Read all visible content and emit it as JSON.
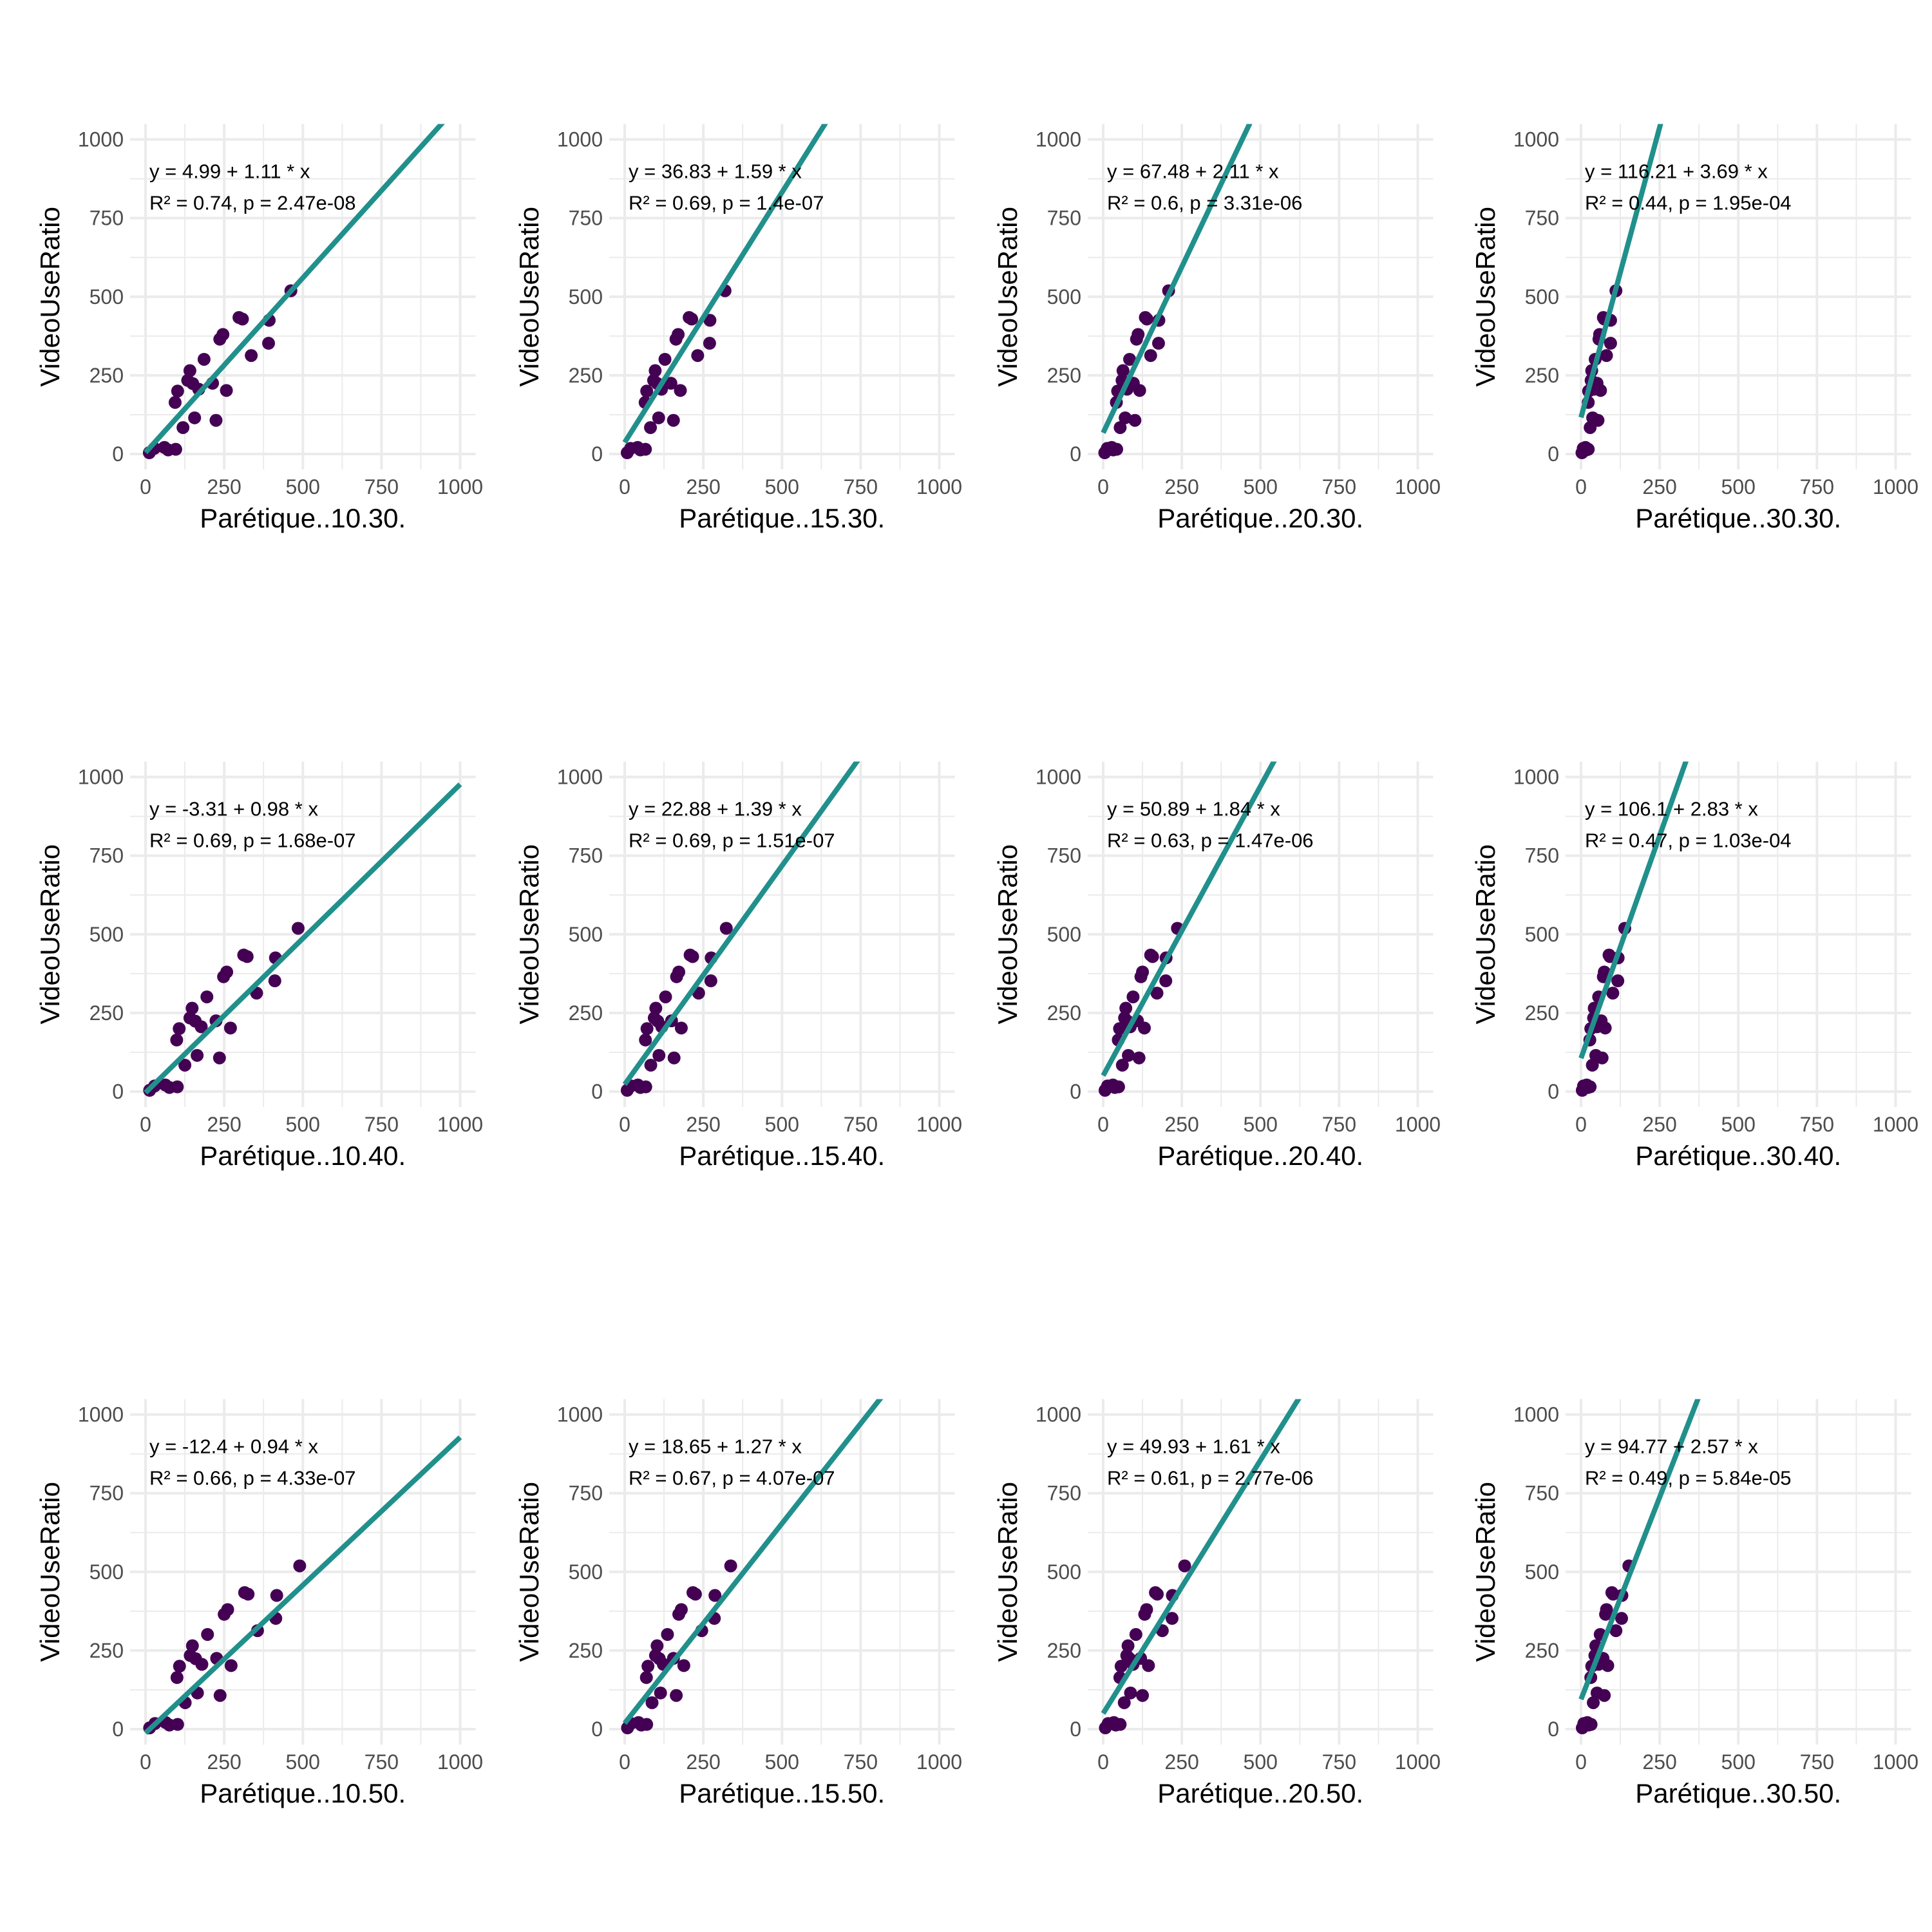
{
  "chart_data": [
    {
      "type": "scatter",
      "title": "",
      "xlabel": "Parétique..10.30.",
      "ylabel": "VideoUseRatio",
      "xlim": [
        0,
        1000
      ],
      "ylim": [
        0,
        1000
      ],
      "xticks": [
        "0",
        "250",
        "500",
        "750",
        "1000"
      ],
      "yticks": [
        "0",
        "250",
        "500",
        "750",
        "1000"
      ],
      "grid": true,
      "annotation": [
        "y = 4.99 + 1.11 * x",
        "R² = 0.74, p = 2.47e-08"
      ],
      "fit": {
        "intercept": 4.99,
        "slope": 1.11
      },
      "x": [
        12,
        28,
        60,
        72,
        96,
        119,
        156,
        224,
        94,
        102,
        141,
        134,
        150,
        169,
        213,
        257,
        186,
        336,
        236,
        246,
        391,
        297,
        308,
        393,
        462
      ],
      "y": [
        4,
        18,
        21,
        13,
        15,
        84,
        115,
        107,
        164,
        200,
        265,
        234,
        224,
        206,
        225,
        202,
        301,
        313,
        365,
        380,
        352,
        434,
        429,
        425,
        519
      ]
    },
    {
      "type": "scatter",
      "title": "",
      "xlabel": "Parétique..15.30.",
      "ylabel": "VideoUseRatio",
      "xlim": [
        0,
        1000
      ],
      "ylim": [
        0,
        1000
      ],
      "xticks": [
        "0",
        "250",
        "500",
        "750",
        "1000"
      ],
      "yticks": [
        "0",
        "250",
        "500",
        "750",
        "1000"
      ],
      "grid": true,
      "annotation": [
        "y = 36.83 + 1.59 * x",
        "R² = 0.69, p = 1.4e-07"
      ],
      "fit": {
        "intercept": 36.83,
        "slope": 1.59
      },
      "x": [
        8,
        19,
        41,
        50,
        66,
        82,
        108,
        155,
        65,
        70,
        97,
        92,
        104,
        117,
        147,
        177,
        128,
        232,
        163,
        170,
        270,
        205,
        213,
        271,
        319
      ],
      "y": [
        4,
        18,
        21,
        13,
        15,
        84,
        115,
        107,
        164,
        200,
        265,
        234,
        224,
        206,
        225,
        202,
        301,
        313,
        365,
        380,
        352,
        434,
        429,
        425,
        519
      ]
    },
    {
      "type": "scatter",
      "title": "",
      "xlabel": "Parétique..20.30.",
      "ylabel": "VideoUseRatio",
      "xlim": [
        0,
        1000
      ],
      "ylim": [
        0,
        1000
      ],
      "xticks": [
        "0",
        "250",
        "500",
        "750",
        "1000"
      ],
      "yticks": [
        "0",
        "250",
        "500",
        "750",
        "1000"
      ],
      "grid": true,
      "annotation": [
        "y = 67.48 + 2.11 * x",
        "R² = 0.6, p = 3.31e-06"
      ],
      "fit": {
        "intercept": 67.48,
        "slope": 2.11
      },
      "x": [
        5,
        13,
        27,
        32,
        43,
        54,
        70,
        101,
        42,
        46,
        63,
        60,
        68,
        76,
        96,
        116,
        84,
        151,
        106,
        111,
        176,
        134,
        139,
        177,
        208
      ],
      "y": [
        4,
        18,
        21,
        13,
        15,
        84,
        115,
        107,
        164,
        200,
        265,
        234,
        224,
        206,
        225,
        202,
        301,
        313,
        365,
        380,
        352,
        434,
        429,
        425,
        519
      ]
    },
    {
      "type": "scatter",
      "title": "",
      "xlabel": "Parétique..30.30.",
      "ylabel": "VideoUseRatio",
      "xlim": [
        0,
        1000
      ],
      "ylim": [
        0,
        1000
      ],
      "xticks": [
        "0",
        "250",
        "500",
        "750",
        "1000"
      ],
      "yticks": [
        "0",
        "250",
        "500",
        "750",
        "1000"
      ],
      "grid": true,
      "annotation": [
        "y = 116.21 + 3.69 * x",
        "R² = 0.44, p = 1.95e-04"
      ],
      "fit": {
        "intercept": 116.21,
        "slope": 3.69
      },
      "x": [
        3,
        7,
        14,
        17,
        23,
        29,
        37,
        54,
        23,
        24,
        34,
        32,
        36,
        41,
        51,
        62,
        45,
        81,
        57,
        59,
        94,
        71,
        74,
        94,
        111
      ],
      "y": [
        4,
        18,
        21,
        13,
        15,
        84,
        115,
        107,
        164,
        200,
        265,
        234,
        224,
        206,
        225,
        202,
        301,
        313,
        365,
        380,
        352,
        434,
        429,
        425,
        519
      ]
    },
    {
      "type": "scatter",
      "title": "",
      "xlabel": "Parétique..10.40.",
      "ylabel": "VideoUseRatio",
      "xlim": [
        0,
        1000
      ],
      "ylim": [
        0,
        1000
      ],
      "xticks": [
        "0",
        "250",
        "500",
        "750",
        "1000"
      ],
      "yticks": [
        "0",
        "250",
        "500",
        "750",
        "1000"
      ],
      "grid": true,
      "annotation": [
        "y = -3.31 + 0.98 * x",
        "R² = 0.69, p = 1.68e-07"
      ],
      "fit": {
        "intercept": -3.31,
        "slope": 0.98
      },
      "x": [
        13,
        29,
        63,
        76,
        101,
        125,
        164,
        235,
        99,
        107,
        148,
        141,
        158,
        177,
        224,
        270,
        195,
        353,
        248,
        258,
        411,
        312,
        323,
        413,
        485
      ],
      "y": [
        4,
        18,
        21,
        13,
        15,
        84,
        115,
        107,
        164,
        200,
        265,
        234,
        224,
        206,
        225,
        202,
        301,
        313,
        365,
        380,
        352,
        434,
        429,
        425,
        519
      ]
    },
    {
      "type": "scatter",
      "title": "",
      "xlabel": "Parétique..15.40.",
      "ylabel": "VideoUseRatio",
      "xlim": [
        0,
        1000
      ],
      "ylim": [
        0,
        1000
      ],
      "xticks": [
        "0",
        "250",
        "500",
        "750",
        "1000"
      ],
      "yticks": [
        "0",
        "250",
        "500",
        "750",
        "1000"
      ],
      "grid": true,
      "annotation": [
        "y = 22.88 + 1.39 * x",
        "R² = 0.69, p = 1.51e-07"
      ],
      "fit": {
        "intercept": 22.88,
        "slope": 1.39
      },
      "x": [
        8,
        20,
        42,
        50,
        67,
        83,
        109,
        157,
        66,
        71,
        99,
        94,
        105,
        118,
        149,
        180,
        130,
        235,
        165,
        172,
        274,
        208,
        216,
        275,
        323
      ],
      "y": [
        4,
        18,
        21,
        13,
        15,
        84,
        115,
        107,
        164,
        200,
        265,
        234,
        224,
        206,
        225,
        202,
        301,
        313,
        365,
        380,
        352,
        434,
        429,
        425,
        519
      ]
    },
    {
      "type": "scatter",
      "title": "",
      "xlabel": "Parétique..20.40.",
      "ylabel": "VideoUseRatio",
      "xlim": [
        0,
        1000
      ],
      "ylim": [
        0,
        1000
      ],
      "xticks": [
        "0",
        "250",
        "500",
        "750",
        "1000"
      ],
      "yticks": [
        "0",
        "250",
        "500",
        "750",
        "1000"
      ],
      "grid": true,
      "annotation": [
        "y = 50.89 + 1.84 * x",
        "R² = 0.63, p = 1.47e-06"
      ],
      "fit": {
        "intercept": 50.89,
        "slope": 1.84
      },
      "x": [
        6,
        14,
        31,
        37,
        49,
        61,
        80,
        114,
        48,
        52,
        72,
        68,
        77,
        86,
        109,
        131,
        95,
        171,
        120,
        125,
        199,
        151,
        157,
        200,
        236
      ],
      "y": [
        4,
        18,
        21,
        13,
        15,
        84,
        115,
        107,
        164,
        200,
        265,
        234,
        224,
        206,
        225,
        202,
        301,
        313,
        365,
        380,
        352,
        434,
        429,
        425,
        519
      ]
    },
    {
      "type": "scatter",
      "title": "",
      "xlabel": "Parétique..30.40.",
      "ylabel": "VideoUseRatio",
      "xlim": [
        0,
        1000
      ],
      "ylim": [
        0,
        1000
      ],
      "xticks": [
        "0",
        "250",
        "500",
        "750",
        "1000"
      ],
      "yticks": [
        "0",
        "250",
        "500",
        "750",
        "1000"
      ],
      "grid": true,
      "annotation": [
        "y = 106.1 + 2.83 * x",
        "R² = 0.47, p = 1.03e-04"
      ],
      "fit": {
        "intercept": 106.1,
        "slope": 2.83
      },
      "x": [
        4,
        8,
        18,
        22,
        29,
        36,
        47,
        67,
        28,
        31,
        42,
        40,
        45,
        51,
        64,
        77,
        56,
        101,
        71,
        74,
        117,
        89,
        92,
        118,
        139
      ],
      "y": [
        4,
        18,
        21,
        13,
        15,
        84,
        115,
        107,
        164,
        200,
        265,
        234,
        224,
        206,
        225,
        202,
        301,
        313,
        365,
        380,
        352,
        434,
        429,
        425,
        519
      ]
    },
    {
      "type": "scatter",
      "title": "",
      "xlabel": "Parétique..10.50.",
      "ylabel": "VideoUseRatio",
      "xlim": [
        0,
        1000
      ],
      "ylim": [
        0,
        1000
      ],
      "xticks": [
        "0",
        "250",
        "500",
        "750",
        "1000"
      ],
      "yticks": [
        "0",
        "250",
        "500",
        "750",
        "1000"
      ],
      "grid": true,
      "annotation": [
        "y = -12.4 + 0.94 * x",
        "R² = 0.66, p = 4.33e-07"
      ],
      "fit": {
        "intercept": -12.4,
        "slope": 0.94
      },
      "x": [
        13,
        30,
        64,
        76,
        102,
        126,
        165,
        237,
        100,
        108,
        149,
        142,
        159,
        179,
        226,
        272,
        197,
        356,
        250,
        261,
        414,
        315,
        326,
        417,
        490
      ],
      "y": [
        4,
        18,
        21,
        13,
        15,
        84,
        115,
        107,
        164,
        200,
        265,
        234,
        224,
        206,
        225,
        202,
        301,
        313,
        365,
        380,
        352,
        434,
        429,
        425,
        519
      ]
    },
    {
      "type": "scatter",
      "title": "",
      "xlabel": "Parétique..15.50.",
      "ylabel": "VideoUseRatio",
      "xlim": [
        0,
        1000
      ],
      "ylim": [
        0,
        1000
      ],
      "xticks": [
        "0",
        "250",
        "500",
        "750",
        "1000"
      ],
      "yticks": [
        "0",
        "250",
        "500",
        "750",
        "1000"
      ],
      "grid": true,
      "annotation": [
        "y = 18.65 + 1.27 * x",
        "R² = 0.67, p = 4.07e-07"
      ],
      "fit": {
        "intercept": 18.65,
        "slope": 1.27
      },
      "x": [
        9,
        20,
        44,
        53,
        70,
        87,
        114,
        164,
        69,
        74,
        103,
        98,
        110,
        123,
        155,
        188,
        136,
        245,
        172,
        180,
        285,
        217,
        225,
        287,
        337
      ],
      "y": [
        4,
        18,
        21,
        13,
        15,
        84,
        115,
        107,
        164,
        200,
        265,
        234,
        224,
        206,
        225,
        202,
        301,
        313,
        365,
        380,
        352,
        434,
        429,
        425,
        519
      ]
    },
    {
      "type": "scatter",
      "title": "",
      "xlabel": "Parétique..20.50.",
      "ylabel": "VideoUseRatio",
      "xlim": [
        0,
        1000
      ],
      "ylim": [
        0,
        1000
      ],
      "xticks": [
        "0",
        "250",
        "500",
        "750",
        "1000"
      ],
      "yticks": [
        "0",
        "250",
        "500",
        "750",
        "1000"
      ],
      "grid": true,
      "annotation": [
        "y = 49.93 + 1.61 * x",
        "R² = 0.61, p = 2.77e-06"
      ],
      "fit": {
        "intercept": 49.93,
        "slope": 1.61
      },
      "x": [
        7,
        16,
        34,
        40,
        54,
        67,
        87,
        125,
        53,
        57,
        79,
        75,
        84,
        95,
        119,
        144,
        104,
        188,
        132,
        138,
        219,
        166,
        172,
        220,
        259
      ],
      "y": [
        4,
        18,
        21,
        13,
        15,
        84,
        115,
        107,
        164,
        200,
        265,
        234,
        224,
        206,
        225,
        202,
        301,
        313,
        365,
        380,
        352,
        434,
        429,
        425,
        519
      ]
    },
    {
      "type": "scatter",
      "title": "",
      "xlabel": "Parétique..30.50.",
      "ylabel": "VideoUseRatio",
      "xlim": [
        0,
        1000
      ],
      "ylim": [
        0,
        1000
      ],
      "xticks": [
        "0",
        "250",
        "500",
        "750",
        "1000"
      ],
      "yticks": [
        "0",
        "250",
        "500",
        "750",
        "1000"
      ],
      "grid": true,
      "annotation": [
        "y = 94.77 + 2.57 * x",
        "R² = 0.49, p = 5.84e-05"
      ],
      "fit": {
        "intercept": 94.77,
        "slope": 2.57
      },
      "x": [
        4,
        9,
        20,
        24,
        32,
        39,
        51,
        74,
        31,
        34,
        47,
        44,
        50,
        56,
        70,
        85,
        61,
        111,
        78,
        81,
        129,
        98,
        102,
        130,
        152
      ],
      "y": [
        4,
        18,
        21,
        13,
        15,
        84,
        115,
        107,
        164,
        200,
        265,
        234,
        224,
        206,
        225,
        202,
        301,
        313,
        365,
        380,
        352,
        434,
        429,
        425,
        519
      ]
    }
  ],
  "colors": {
    "points": "#440154",
    "fit_line": "#21908C",
    "grid": "#EBEBEB",
    "tick_text": "#4D4D4D",
    "text": "#000000"
  }
}
